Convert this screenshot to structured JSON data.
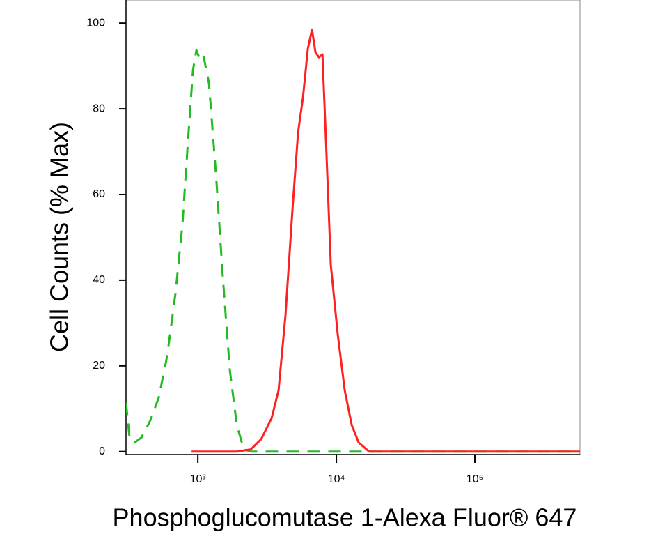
{
  "chart_data": {
    "type": "line",
    "x_label": "Phosphoglucomutase 1-Alexa Fluor® 647",
    "y_label": "Cell Counts (% Max)",
    "xscale": "log",
    "xlim": [
      303,
      574000
    ],
    "ylim": [
      -0.7,
      105.4
    ],
    "xticks": [
      {
        "value": 1000,
        "label": "10³"
      },
      {
        "value": 10000,
        "label": "10⁴"
      },
      {
        "value": 100000,
        "label": "10⁵"
      }
    ],
    "yticks": [
      0,
      20,
      40,
      60,
      80,
      100
    ],
    "series": [
      {
        "color": "#22bb22",
        "line_style": "dashed",
        "x": [
          303,
          322,
          349,
          392,
          450,
          523,
          601,
          690,
          774,
          851,
          922,
          977,
          1035,
          1097,
          1203,
          1351,
          1517,
          1702,
          1910,
          2147,
          2410,
          574000
        ],
        "values": [
          11.4,
          2.9,
          2.1,
          3.3,
          7,
          12.7,
          22.4,
          37,
          53,
          73,
          89,
          93.7,
          91.5,
          92.4,
          86,
          64.7,
          40.3,
          19,
          6.2,
          0.5,
          0,
          0
        ]
      },
      {
        "color": "#ff2020",
        "line_style": "solid",
        "x": [
          901,
          1910,
          2410,
          2864,
          3409,
          3826,
          4296,
          4822,
          5291,
          5738,
          6224,
          6670,
          7067,
          7486,
          7930,
          8407,
          9118,
          10233,
          11487,
          12899,
          14483,
          17227,
          20500,
          574000
        ],
        "values": [
          0,
          0,
          0.5,
          2.9,
          7.8,
          14.3,
          32,
          56.6,
          74.5,
          82.6,
          94,
          98.5,
          93.2,
          92,
          92.7,
          72.8,
          43.6,
          27.3,
          14.3,
          6.2,
          2.1,
          0,
          0,
          0
        ]
      }
    ]
  }
}
